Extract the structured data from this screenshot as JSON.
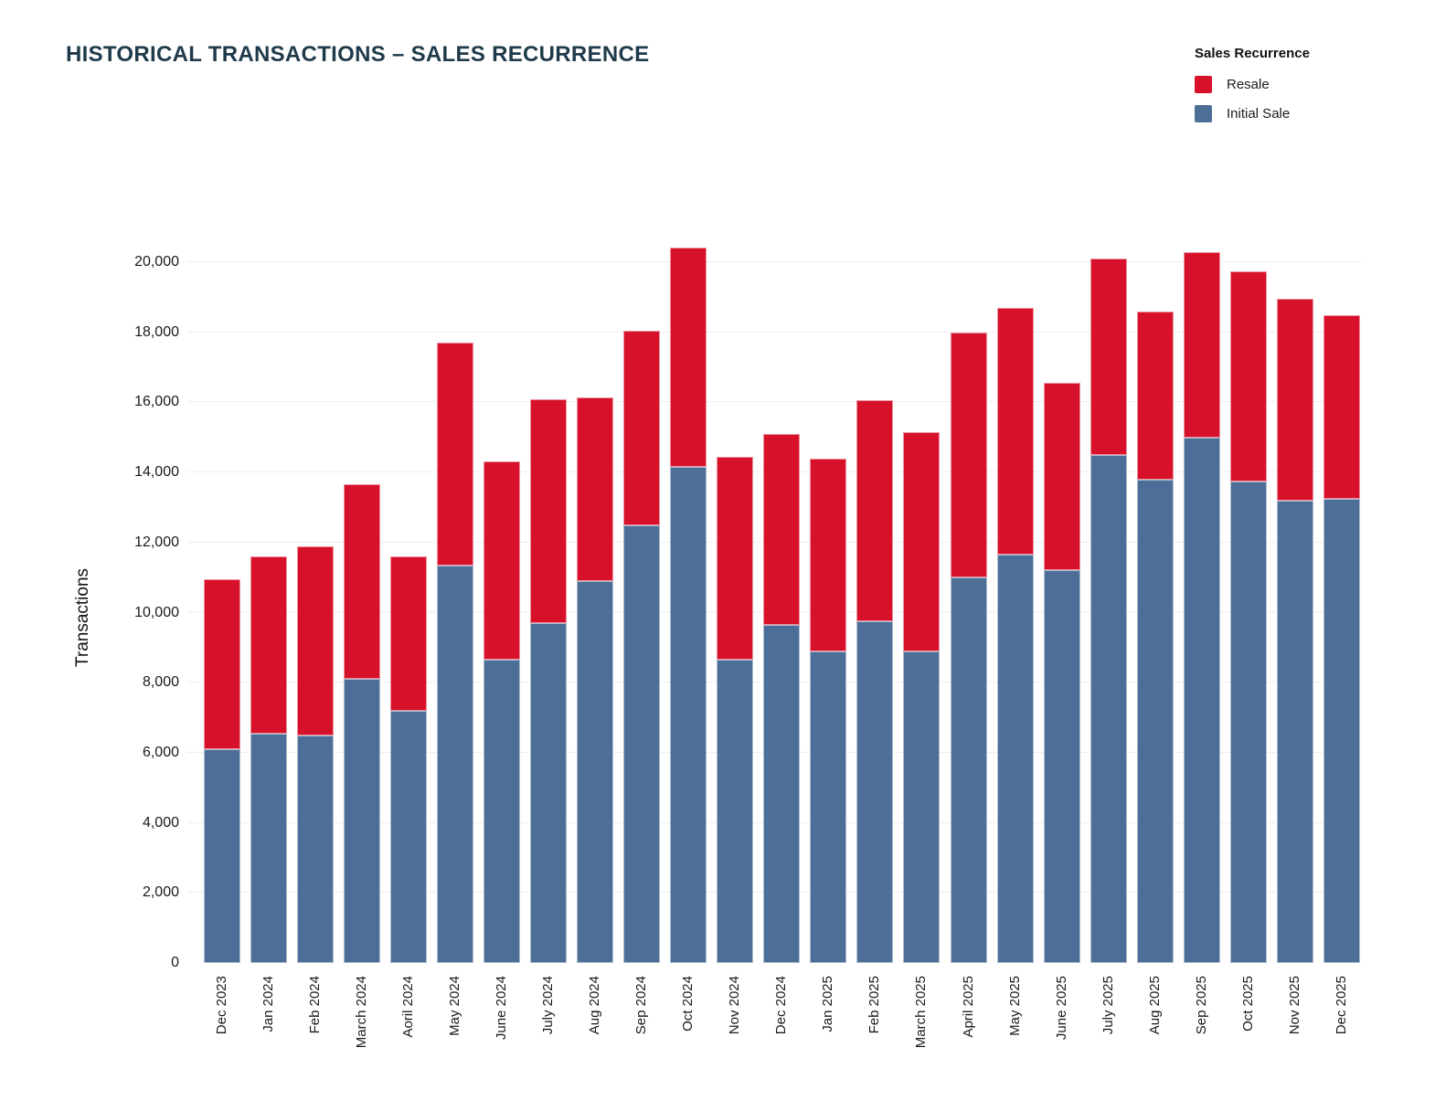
{
  "page_title": "HISTORICAL TRANSACTIONS – SALES RECURRENCE",
  "legend": {
    "title": "Sales Recurrence",
    "items": [
      {
        "label": "Resale",
        "color": "#D8112B"
      },
      {
        "label": "Initial Sale",
        "color": "#4D6F97"
      }
    ]
  },
  "colors": {
    "resale": "#D8112B",
    "initial_sale": "#4D6F97",
    "title_text": "#1f3a4a",
    "gridline": "#efefef",
    "axis_text": "#1a1a1a"
  },
  "chart_data": {
    "type": "bar",
    "stacked": true,
    "title": "HISTORICAL TRANSACTIONS – SALES RECURRENCE",
    "xlabel": "",
    "ylabel": "Transactions",
    "ylim": [
      0,
      20000
    ],
    "ytick_step": 2000,
    "ytick_labels": [
      "0",
      "2,000",
      "4,000",
      "6,000",
      "8,000",
      "10,000",
      "12,000",
      "14,000",
      "16,000",
      "18,000",
      "20,000"
    ],
    "grid": true,
    "legend_position": "top-right",
    "categories": [
      "Dec 2023",
      "Jan 2024",
      "Feb 2024",
      "March 2024",
      "Aoril 2024",
      "May 2024",
      "June 2024",
      "July 2024",
      "Aug 2024",
      "Sep 2024",
      "Oct 2024",
      "Nov 2024",
      "Dec 2024",
      "Jan 2025",
      "Feb 2025",
      "March 2025",
      "April 2025",
      "May 2025",
      "June 2025",
      "July 2025",
      "Aug 2025",
      "Sep 2025",
      "Oct 2025",
      "Nov 2025",
      "Dec 2025"
    ],
    "series": [
      {
        "name": "Initial Sale",
        "color": "#4D6F97",
        "values": [
          6100,
          6550,
          6500,
          8100,
          7200,
          11350,
          8650,
          9700,
          10900,
          12500,
          14150,
          8650,
          9650,
          8900,
          9750,
          8900,
          11000,
          11650,
          11200,
          14500,
          13800,
          15000,
          13750,
          13200,
          13250
        ]
      },
      {
        "name": "Resale",
        "color": "#D8112B",
        "values": [
          4850,
          5050,
          5400,
          5550,
          4400,
          6350,
          5650,
          6400,
          5250,
          5550,
          6250,
          5800,
          5450,
          5500,
          6300,
          6250,
          7000,
          7050,
          5350,
          5600,
          4800,
          5300,
          6000,
          5750,
          5250
        ]
      }
    ],
    "totals": [
      10950,
      11600,
      11900,
      13650,
      11600,
      17700,
      14300,
      16100,
      16150,
      18050,
      20400,
      14450,
      15100,
      14400,
      16050,
      15150,
      18000,
      18700,
      16550,
      20100,
      18600,
      20300,
      19750,
      18950,
      18500
    ]
  }
}
